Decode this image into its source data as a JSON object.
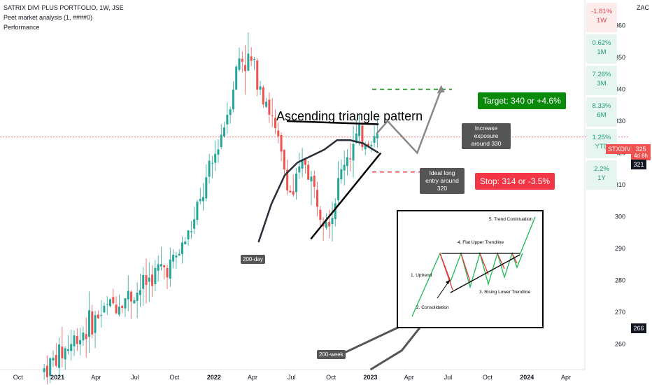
{
  "header": {
    "symbol_line": "SATRIX DIVI PLUS PORTFOLIO, 1W, JSE",
    "indicator1": "Peet market analysis (1, ####0)",
    "indicator2": "Performance"
  },
  "currency": "ZAC",
  "performance": [
    {
      "value": "-1.81%",
      "period": "1W",
      "sign": "neg"
    },
    {
      "value": "0.62%",
      "period": "1M",
      "sign": "pos"
    },
    {
      "value": "7.26%",
      "period": "3M",
      "sign": "pos"
    },
    {
      "value": "8.33%",
      "period": "6M",
      "sign": "pos"
    },
    {
      "value": "1.25%",
      "period": "YTD",
      "sign": "pos"
    },
    {
      "value": "2.2%",
      "period": "1Y",
      "sign": "pos"
    }
  ],
  "price_badges": {
    "ticker": "STXDIV",
    "last": "325",
    "countdown": "4d 8h",
    "level_a": "321",
    "level_b": "266"
  },
  "annotations": {
    "title": "Ascending triangle pattern",
    "target": "Target: 340 or +4.6%",
    "stop": "Stop: 314 or -3.5%",
    "increase": "Increase exposure around 330",
    "entry": "Ideal long entry around 320",
    "ma200day": "200-day",
    "ma200week": "200-week"
  },
  "inset": {
    "steps": [
      "1. Uptrend",
      "2. Consolidation",
      "3. Rising Lower Trendline",
      "4. Flat Upper Trendline",
      "5. Trend Continuation"
    ]
  },
  "colors": {
    "up": "#26a69a",
    "down": "#ef5350",
    "target": "#0a8a0a",
    "stop": "#f23645",
    "badge_grey": "#555555"
  },
  "chart_data": {
    "type": "candlestick",
    "title": "SATRIX DIVI PLUS PORTFOLIO, 1W, JSE",
    "ylim": [
      252,
      368
    ],
    "yticks": [
      260,
      270,
      280,
      290,
      300,
      310,
      320,
      330,
      340,
      350,
      360
    ],
    "xtick_labels": [
      "Oct",
      "2021",
      "Apr",
      "Jul",
      "Oct",
      "2022",
      "Apr",
      "Jul",
      "Oct",
      "2023",
      "Apr",
      "Jul",
      "Oct",
      "2024",
      "Apr"
    ],
    "xtick_dates": [
      "2020-10-01",
      "2021-01-01",
      "2021-04-01",
      "2021-07-01",
      "2021-10-01",
      "2022-01-01",
      "2022-04-01",
      "2022-07-01",
      "2022-10-01",
      "2023-01-01",
      "2023-04-01",
      "2023-07-01",
      "2023-10-01",
      "2024-01-01",
      "2024-04-01"
    ],
    "date_range": [
      "2020-08-20",
      "2024-05-15"
    ],
    "close_path": [
      [
        "2020-12-01",
        252
      ],
      [
        "2021-01-01",
        256
      ],
      [
        "2021-03-01",
        264
      ],
      [
        "2021-05-01",
        272
      ],
      [
        "2021-07-01",
        276
      ],
      [
        "2021-08-15",
        282
      ],
      [
        "2021-10-01",
        286
      ],
      [
        "2021-11-15",
        298
      ],
      [
        "2022-01-01",
        318
      ],
      [
        "2022-02-01",
        333
      ],
      [
        "2022-03-01",
        350
      ],
      [
        "2022-04-01",
        348
      ],
      [
        "2022-05-01",
        338
      ],
      [
        "2022-06-01",
        322
      ],
      [
        "2022-07-01",
        306
      ],
      [
        "2022-08-01",
        318
      ],
      [
        "2022-09-01",
        304
      ],
      [
        "2022-10-01",
        300
      ],
      [
        "2022-11-01",
        318
      ],
      [
        "2022-12-01",
        324
      ],
      [
        "2023-01-20",
        325
      ]
    ],
    "ma_200day": [
      [
        "2022-04-15",
        292
      ],
      [
        "2022-05-15",
        304
      ],
      [
        "2022-06-15",
        313
      ],
      [
        "2022-07-15",
        317
      ],
      [
        "2022-08-15",
        319
      ],
      [
        "2022-09-15",
        321
      ],
      [
        "2022-10-15",
        324
      ],
      [
        "2022-11-15",
        324
      ],
      [
        "2022-12-15",
        323
      ],
      [
        "2023-01-20",
        320
      ]
    ],
    "ma_200week": [
      [
        "2023-01-01",
        252
      ],
      [
        "2023-03-15",
        258
      ],
      [
        "2023-05-01",
        266
      ]
    ],
    "lines": {
      "upper_trendline": [
        [
          "2022-06-20",
          330
        ],
        [
          "2023-01-20",
          329
        ]
      ],
      "lower_trendline": [
        [
          "2022-08-15",
          293
        ],
        [
          "2023-01-25",
          320
        ]
      ],
      "target_level": [
        [
          "2023-01-05",
          340
        ],
        [
          "2023-07-10",
          340
        ]
      ],
      "stop_level": [
        [
          "2023-01-05",
          314
        ],
        [
          "2023-06-25",
          314
        ]
      ],
      "projection": [
        [
          "2023-01-15",
          326
        ],
        [
          "2023-02-10",
          330
        ],
        [
          "2023-04-20",
          320
        ],
        [
          "2023-06-15",
          340
        ]
      ]
    },
    "last_price": 325
  }
}
